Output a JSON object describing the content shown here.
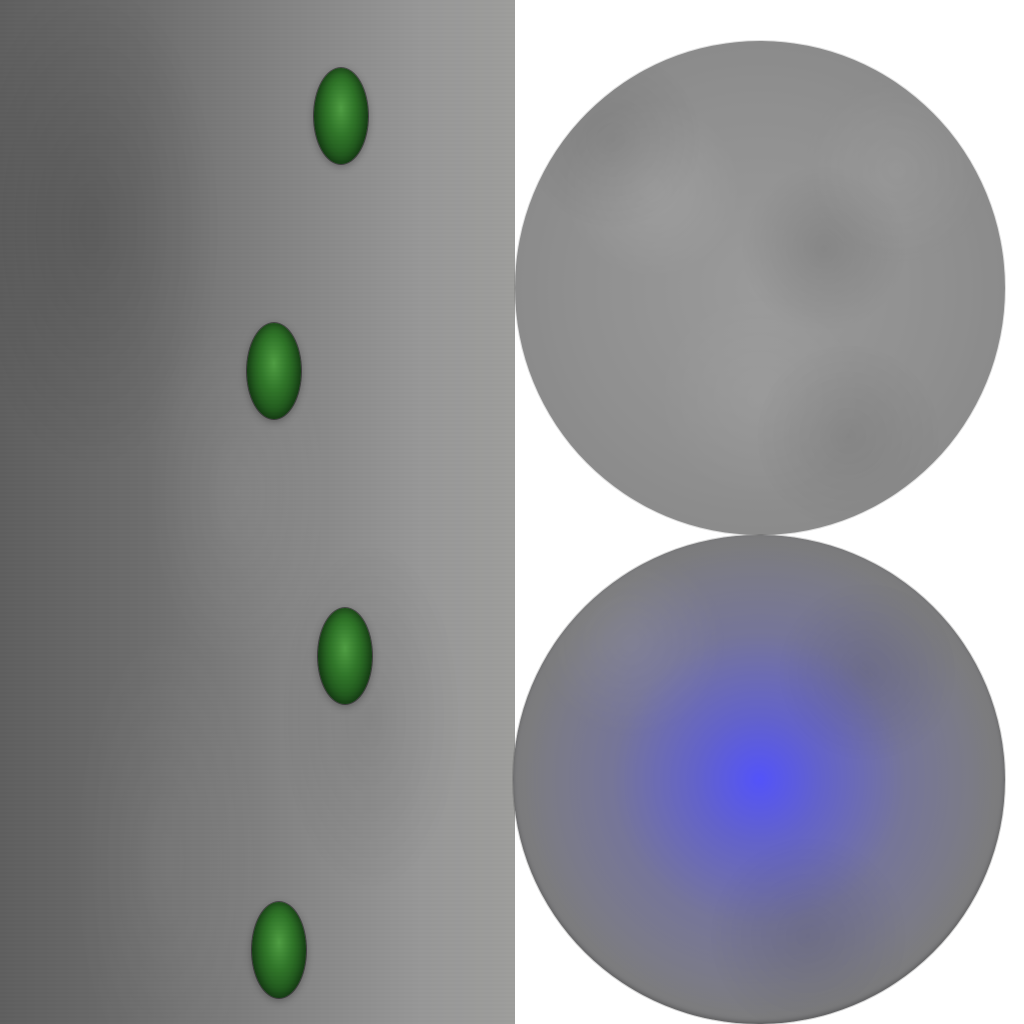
{
  "colors": {
    "background": "#ffffff",
    "panel_gray": "#8a8a8a",
    "stud_green": "#2f7428",
    "disc_gray": "#909090",
    "disc_blue": "#5454e0"
  }
}
